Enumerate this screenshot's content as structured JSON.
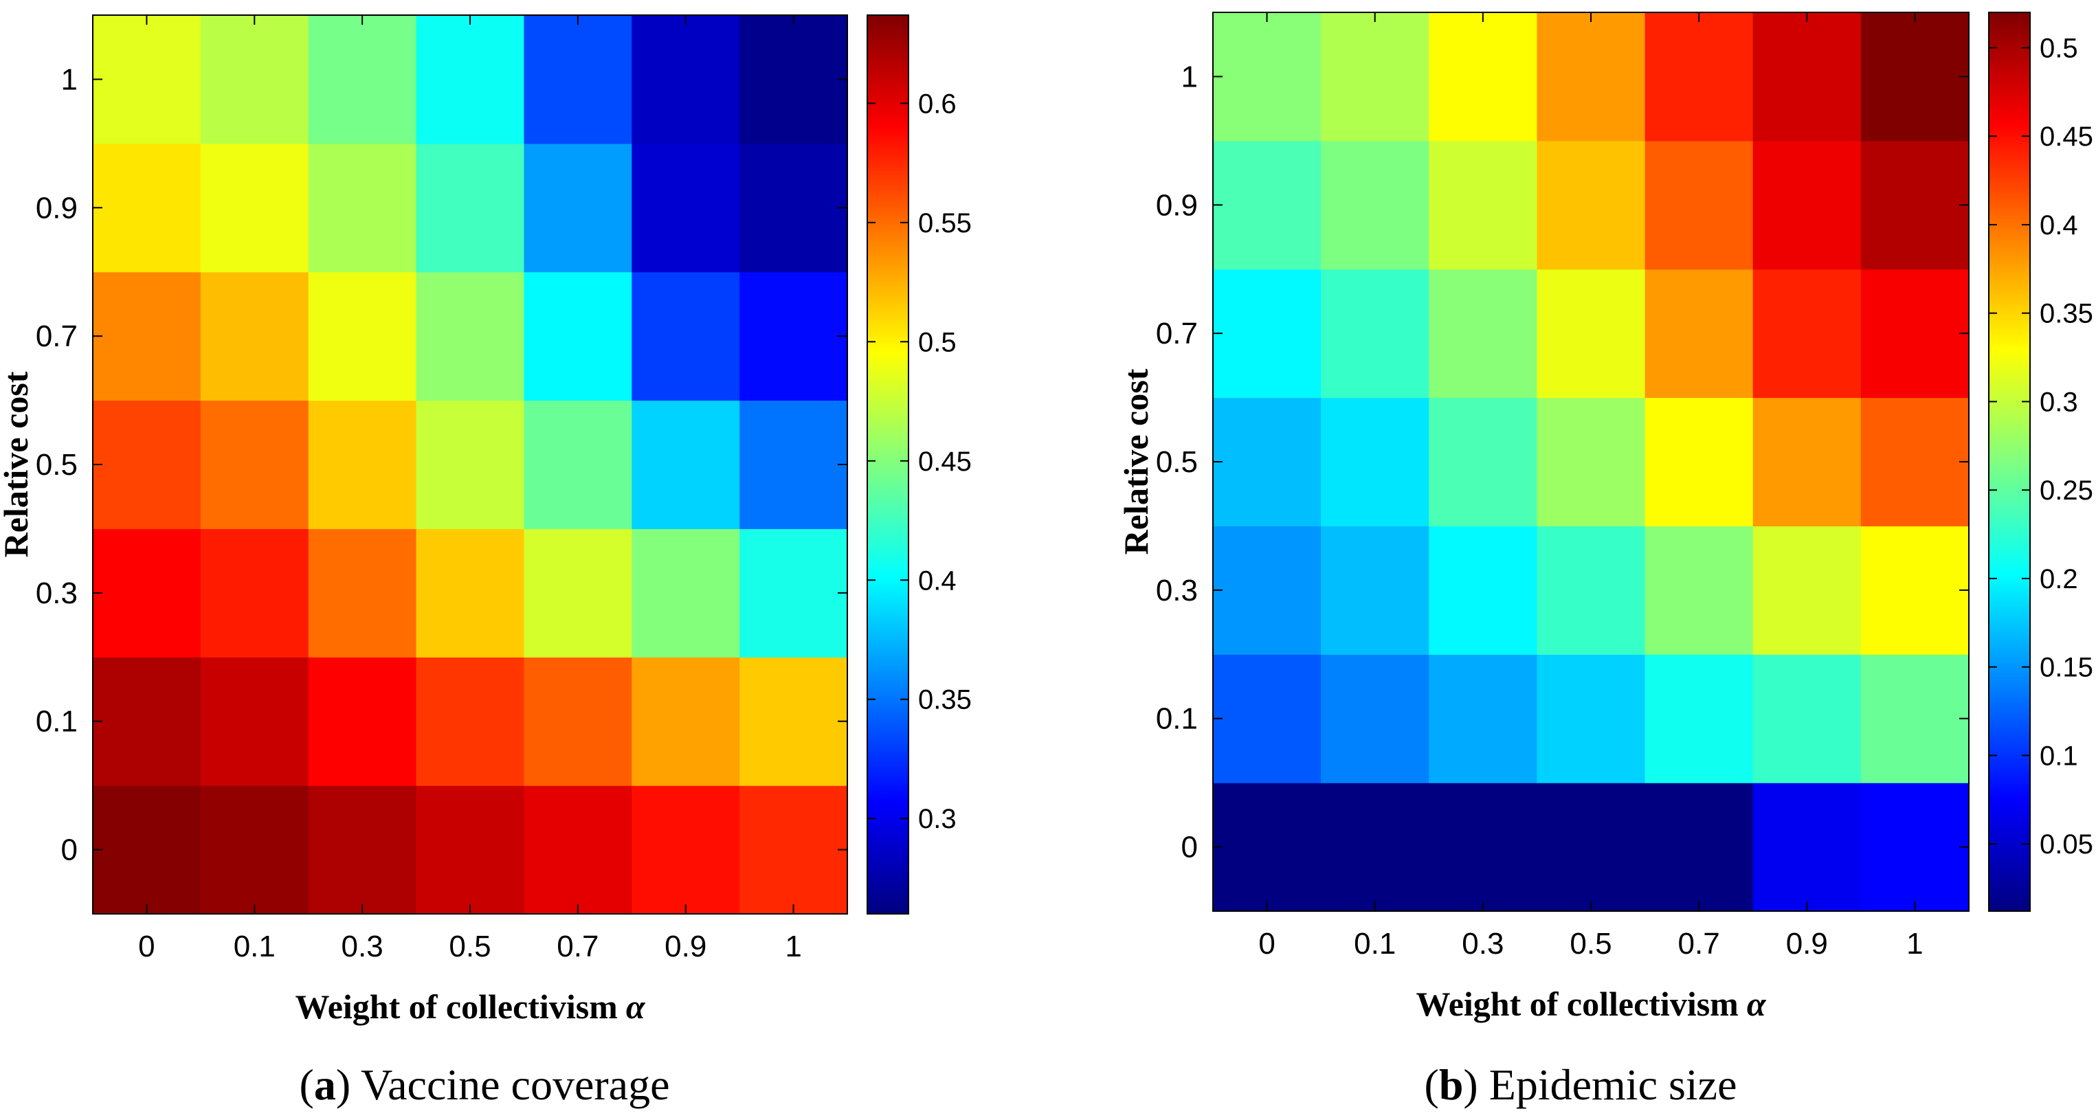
{
  "chart_data": [
    {
      "type": "heatmap",
      "panel_letter": "a",
      "caption_text": "Vaccine coverage",
      "title": "Vaccine coverage",
      "xlabel": "Weight of collectivism",
      "xlabel_symbol": "α",
      "ylabel": "Relative cost",
      "x": [
        "0",
        "0.1",
        "0.3",
        "0.5",
        "0.7",
        "0.9",
        "1"
      ],
      "y": [
        "0",
        "0.1",
        "0.3",
        "0.5",
        "0.7",
        "0.9",
        "1"
      ],
      "values": [
        [
          0.635,
          0.63,
          0.62,
          0.61,
          0.6,
          0.585,
          0.575
        ],
        [
          0.62,
          0.61,
          0.59,
          0.57,
          0.555,
          0.53,
          0.515
        ],
        [
          0.59,
          0.58,
          0.55,
          0.515,
          0.48,
          0.45,
          0.41
        ],
        [
          0.565,
          0.55,
          0.515,
          0.475,
          0.44,
          0.385,
          0.35
        ],
        [
          0.54,
          0.52,
          0.49,
          0.455,
          0.4,
          0.33,
          0.31
        ],
        [
          0.505,
          0.49,
          0.465,
          0.425,
          0.365,
          0.29,
          0.275
        ],
        [
          0.485,
          0.47,
          0.445,
          0.405,
          0.335,
          0.285,
          0.265
        ]
      ],
      "colorbar": {
        "range": [
          0.26,
          0.637
        ],
        "ticks": [
          0.3,
          0.35,
          0.4,
          0.45,
          0.5,
          0.55,
          0.6
        ],
        "tick_labels": [
          "0.3",
          "0.35",
          "0.4",
          "0.45",
          "0.5",
          "0.55",
          "0.6"
        ]
      },
      "colormap": "jet"
    },
    {
      "type": "heatmap",
      "panel_letter": "b",
      "caption_text": "Epidemic size",
      "title": "Epidemic size",
      "xlabel": "Weight of collectivism",
      "xlabel_symbol": "α",
      "ylabel": "Relative cost",
      "x": [
        "0",
        "0.1",
        "0.3",
        "0.5",
        "0.7",
        "0.9",
        "1"
      ],
      "y": [
        "0",
        "0.1",
        "0.3",
        "0.5",
        "0.7",
        "0.9",
        "1"
      ],
      "values": [
        [
          0.012,
          0.012,
          0.012,
          0.012,
          0.012,
          0.068,
          0.075
        ],
        [
          0.12,
          0.14,
          0.16,
          0.18,
          0.21,
          0.23,
          0.255
        ],
        [
          0.15,
          0.17,
          0.2,
          0.23,
          0.27,
          0.31,
          0.33
        ],
        [
          0.17,
          0.19,
          0.24,
          0.28,
          0.33,
          0.38,
          0.41
        ],
        [
          0.2,
          0.23,
          0.27,
          0.32,
          0.38,
          0.44,
          0.46
        ],
        [
          0.24,
          0.265,
          0.305,
          0.36,
          0.41,
          0.465,
          0.495
        ],
        [
          0.27,
          0.29,
          0.33,
          0.38,
          0.44,
          0.48,
          0.52
        ]
      ],
      "colorbar": {
        "range": [
          0.012,
          0.52
        ],
        "ticks": [
          0.05,
          0.1,
          0.15,
          0.2,
          0.25,
          0.3,
          0.35,
          0.4,
          0.45,
          0.5
        ],
        "tick_labels": [
          "0.05",
          "0.1",
          "0.15",
          "0.2",
          "0.25",
          "0.3",
          "0.35",
          "0.4",
          "0.45",
          "0.5"
        ]
      },
      "colormap": "jet"
    }
  ]
}
